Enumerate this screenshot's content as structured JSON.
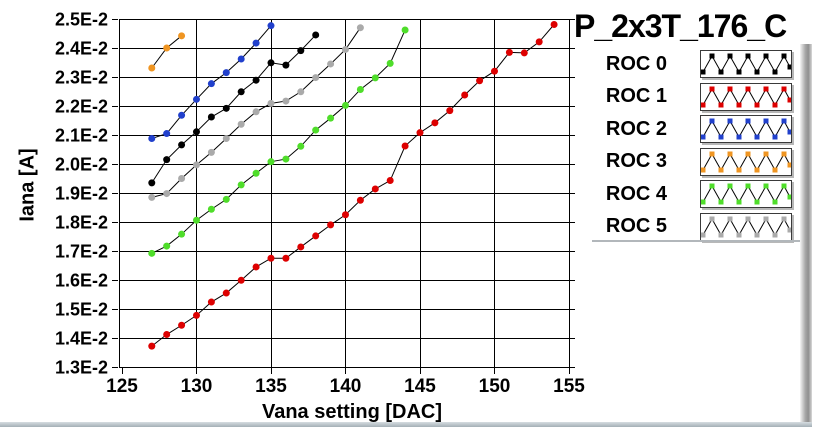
{
  "window": {
    "title": "P_2x3T_176_C"
  },
  "axes": {
    "x_title": "Vana setting [DAC]",
    "y_title": "Iana [A]",
    "x_ticks": [
      {
        "label": "125",
        "value": 125
      },
      {
        "label": "130",
        "value": 130
      },
      {
        "label": "135",
        "value": 135
      },
      {
        "label": "140",
        "value": 140
      },
      {
        "label": "145",
        "value": 145
      },
      {
        "label": "150",
        "value": 150
      },
      {
        "label": "155",
        "value": 155
      }
    ],
    "y_ticks": [
      {
        "label": "2.5E-2",
        "value": 0.025
      },
      {
        "label": "2.4E-2",
        "value": 0.024
      },
      {
        "label": "2.3E-2",
        "value": 0.023
      },
      {
        "label": "2.2E-2",
        "value": 0.022
      },
      {
        "label": "2.1E-2",
        "value": 0.021
      },
      {
        "label": "2.0E-2",
        "value": 0.02
      },
      {
        "label": "1.9E-2",
        "value": 0.019
      },
      {
        "label": "1.8E-2",
        "value": 0.018
      },
      {
        "label": "1.7E-2",
        "value": 0.017
      },
      {
        "label": "1.6E-2",
        "value": 0.016
      },
      {
        "label": "1.5E-2",
        "value": 0.015
      },
      {
        "label": "1.4E-2",
        "value": 0.014
      },
      {
        "label": "1.3E-2",
        "value": 0.013
      }
    ]
  },
  "legend": {
    "items": [
      {
        "label": "ROC 0",
        "color": "#000000"
      },
      {
        "label": "ROC 1",
        "color": "#dd0000"
      },
      {
        "label": "ROC 2",
        "color": "#2140cc"
      },
      {
        "label": "ROC 3",
        "color": "#ef9522"
      },
      {
        "label": "ROC 4",
        "color": "#4fdd2a"
      },
      {
        "label": "ROC 5",
        "color": "#aaaaaa"
      }
    ]
  },
  "chart_data": {
    "type": "line",
    "title": "P_2x3T_176_C",
    "xlabel": "Vana setting [DAC]",
    "ylabel": "Iana [A]",
    "xlim": [
      125,
      155
    ],
    "ylim": [
      0.013,
      0.025
    ],
    "grid": true,
    "legend_position": "right",
    "marker": "dot",
    "line_color": "#000000",
    "series": [
      {
        "name": "ROC 0",
        "color": "#000000",
        "x": [
          127,
          128,
          129,
          130,
          131,
          132,
          133,
          134,
          135,
          136,
          137,
          138
        ],
        "y": [
          0.01935,
          0.02015,
          0.02066,
          0.02111,
          0.02162,
          0.02192,
          0.02249,
          0.02289,
          0.02349,
          0.02341,
          0.02391,
          0.02445
        ]
      },
      {
        "name": "ROC 1",
        "color": "#dd0000",
        "x": [
          127,
          128,
          129,
          130,
          131,
          132,
          133,
          134,
          135,
          136,
          137,
          138,
          139,
          140,
          141,
          142,
          143,
          144,
          145,
          146,
          147,
          148,
          149,
          150,
          151,
          152,
          153,
          154
        ],
        "y": [
          0.01372,
          0.01412,
          0.01444,
          0.01478,
          0.01524,
          0.01555,
          0.01599,
          0.01645,
          0.01675,
          0.01675,
          0.01714,
          0.01752,
          0.0179,
          0.01825,
          0.01875,
          0.01914,
          0.01943,
          0.02062,
          0.02108,
          0.02142,
          0.02184,
          0.02238,
          0.02287,
          0.0232,
          0.02385,
          0.02383,
          0.02421,
          0.02481
        ]
      },
      {
        "name": "ROC 2",
        "color": "#2140cc",
        "x": [
          127,
          128,
          129,
          130,
          131,
          132,
          133,
          134,
          135
        ],
        "y": [
          0.02088,
          0.02105,
          0.02168,
          0.02223,
          0.02277,
          0.02315,
          0.02362,
          0.02417,
          0.02477
        ]
      },
      {
        "name": "ROC 3",
        "color": "#ef9522",
        "x": [
          127,
          128,
          129
        ],
        "y": [
          0.02331,
          0.024,
          0.02442
        ]
      },
      {
        "name": "ROC 4",
        "color": "#4fdd2a",
        "x": [
          127,
          128,
          129,
          130,
          131,
          132,
          133,
          134,
          135,
          136,
          137,
          138,
          139,
          140,
          141,
          142,
          143,
          144
        ],
        "y": [
          0.01692,
          0.01717,
          0.01758,
          0.01806,
          0.01844,
          0.01878,
          0.01928,
          0.01968,
          0.02008,
          0.02017,
          0.02061,
          0.02117,
          0.02158,
          0.02202,
          0.02257,
          0.02297,
          0.02347,
          0.02462
        ]
      },
      {
        "name": "ROC 5",
        "color": "#aaaaaa",
        "x": [
          127,
          128,
          129,
          130,
          131,
          132,
          133,
          134,
          135,
          136,
          137,
          138,
          139,
          140,
          141
        ],
        "y": [
          0.01885,
          0.01898,
          0.0195,
          0.01997,
          0.0204,
          0.02088,
          0.02137,
          0.0218,
          0.02209,
          0.02217,
          0.02249,
          0.02298,
          0.02345,
          0.02395,
          0.0247
        ]
      }
    ]
  }
}
